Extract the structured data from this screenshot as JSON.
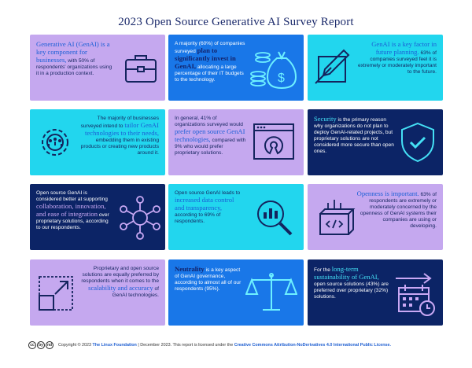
{
  "title": "2023 Open Source Generative AI Survey Report",
  "cards": [
    {
      "hl": "Generative AI (GenAI) is a key component for businesses,",
      "body": "with 50% of respondents' organizations using it in a production context.",
      "icon": "briefcase-icon"
    },
    {
      "pre": "A majority (60%) of companies surveyed",
      "hl": "plan to significantly invest in GenAI,",
      "body": "allocating a large percentage of their IT budgets to the technology.",
      "icon": "money-bag-icon"
    },
    {
      "hl": "GenAI is a key factor in future planning.",
      "body": "63% of companies surveyed feel it is extremely or moderately important to the future.",
      "icon": "planning-ruler-icon"
    },
    {
      "pre": "The majority of businesses surveyed intend to",
      "hl": "tailor GenAI technologies to their needs,",
      "body": "embedding them in existing products or creating new products around it.",
      "icon": "gear-people-icon"
    },
    {
      "pre": "In general, 41% of organizations surveyed would",
      "hl": "prefer open source GenAI technologies,",
      "body": "compared with 9% who would prefer proprietary solutions.",
      "icon": "open-source-window-icon"
    },
    {
      "hl": "Security",
      "body": "is the primary reason why organizations do not plan to deploy GenAI-related projects, but proprietary solutions are not considered more secure than open ones.",
      "icon": "shield-check-icon"
    },
    {
      "pre": "Open source GenAI is considered better at supporting",
      "hl": "collaboration, innovation, and ease of integration",
      "body": "over proprietary solutions, according to our respondents.",
      "icon": "network-brain-icon"
    },
    {
      "pre": "Open source GenAI leads to",
      "hl": "increased data control and transparency,",
      "body": "according to 69% of respondents.",
      "icon": "magnifier-data-icon"
    },
    {
      "hl": "Openness is important.",
      "body": "63% of respondents are extremely or moderately concerned by the openness of GenAI systems their companies are using or developing.",
      "icon": "code-box-icon"
    },
    {
      "pre": "Proprietary and open source solutions are equally preferred by respondents when it comes to the",
      "hl": "scalability and accuracy",
      "body": "of GenAI technologies.",
      "icon": "scale-up-icon"
    },
    {
      "hl": "Neutrality",
      "body": "is a key aspect of GenAI governance, according to almost all of our respondents (95%).",
      "icon": "balance-scale-icon"
    },
    {
      "pre": "For the",
      "hl": "long-term sustainability of GenAI,",
      "body": "open source solutions (43%) are preferred over proprietary (32%) solutions.",
      "icon": "calendar-arrow-icon"
    }
  ],
  "footer": {
    "cc_badges": [
      "cc",
      "by",
      "nd"
    ],
    "copyright": "Copyright © 2023",
    "org": "The Linux Foundation",
    "date_text": "| December 2023. This report is licensed under the",
    "license": "Creative Commons Attribution-NoDerivatives 4.0 International Public License."
  }
}
